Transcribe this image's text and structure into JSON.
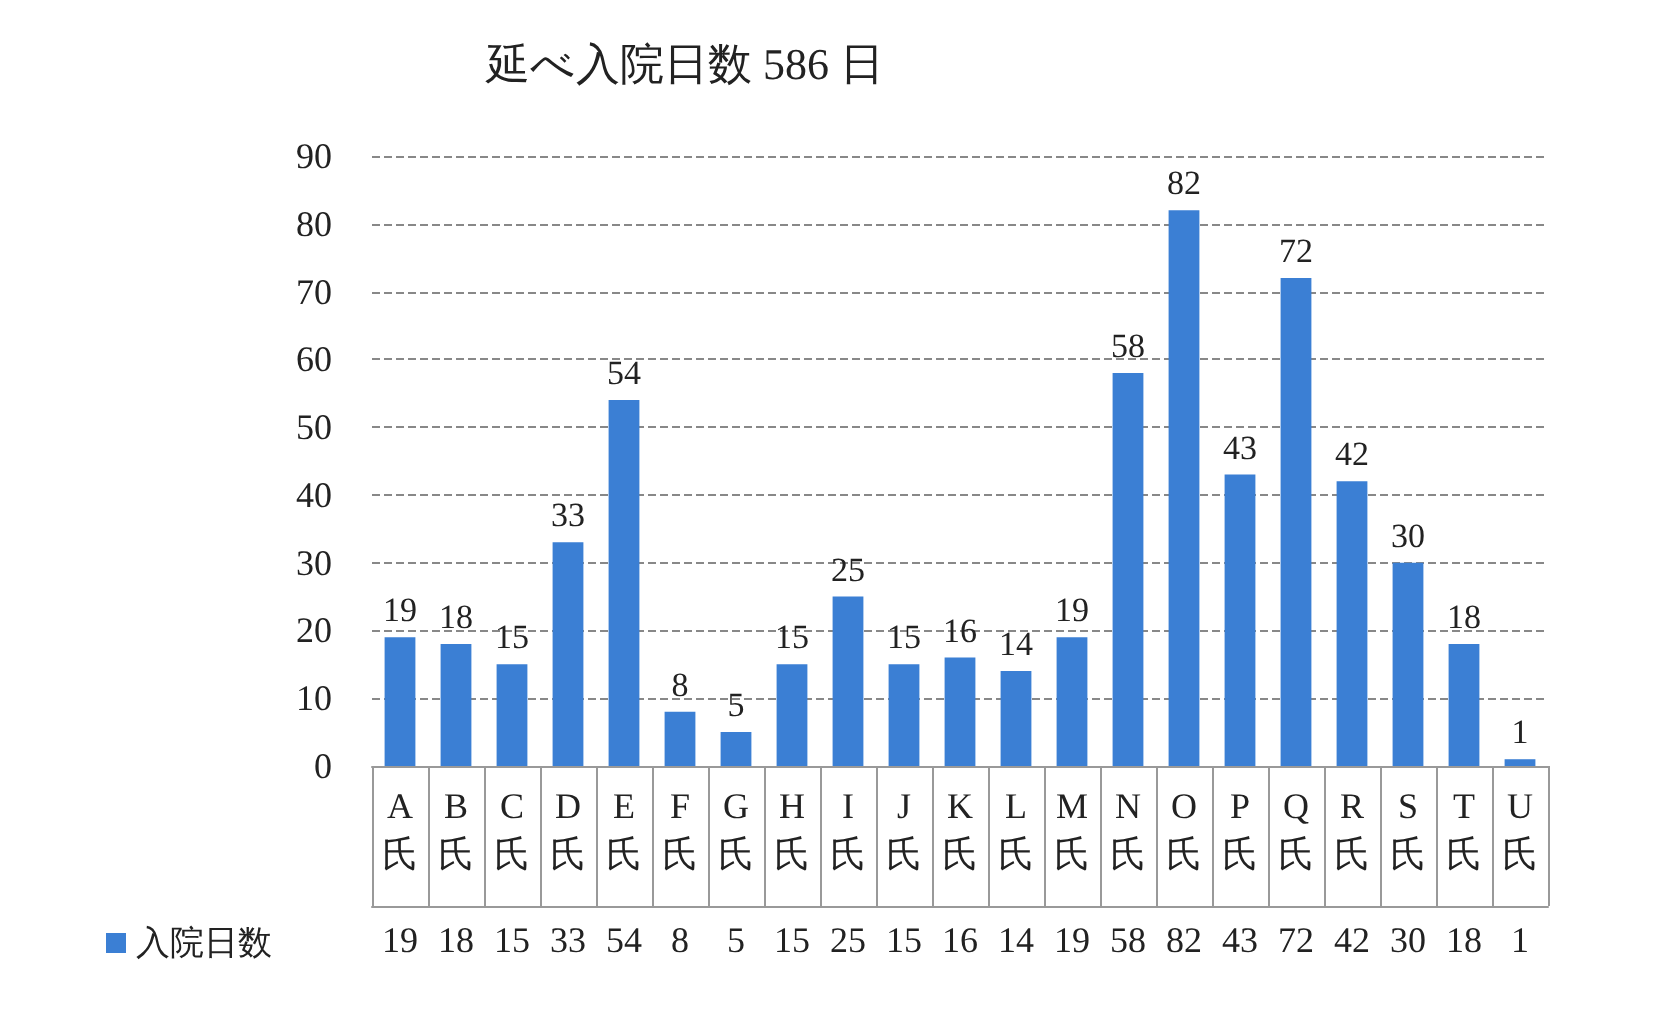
{
  "chart_data": {
    "type": "bar",
    "title": "延べ入院日数 586 日",
    "categories": [
      "A氏",
      "B氏",
      "C氏",
      "D氏",
      "E氏",
      "F氏",
      "G氏",
      "H氏",
      "I氏",
      "J氏",
      "K氏",
      "L氏",
      "M氏",
      "N氏",
      "O氏",
      "P氏",
      "Q氏",
      "R氏",
      "S氏",
      "T氏",
      "U氏"
    ],
    "series": [
      {
        "name": "入院日数",
        "color": "#3b7fd4",
        "values": [
          19,
          18,
          15,
          33,
          54,
          8,
          5,
          15,
          25,
          15,
          16,
          14,
          19,
          58,
          82,
          43,
          72,
          42,
          30,
          18,
          1
        ],
        "value_labels": [
          "19",
          "18",
          "15",
          "33",
          "54",
          "8",
          "5",
          "15",
          "25",
          "15",
          "16",
          "14",
          "19",
          "58",
          "82",
          "43",
          "72",
          "42",
          "30",
          "18",
          "1"
        ]
      }
    ],
    "ylim": [
      0,
      90
    ],
    "yticks": [
      0,
      10,
      20,
      30,
      40,
      50,
      60,
      70,
      80,
      90
    ],
    "grid": "y",
    "data_labels": true,
    "legend": "bottom left"
  }
}
